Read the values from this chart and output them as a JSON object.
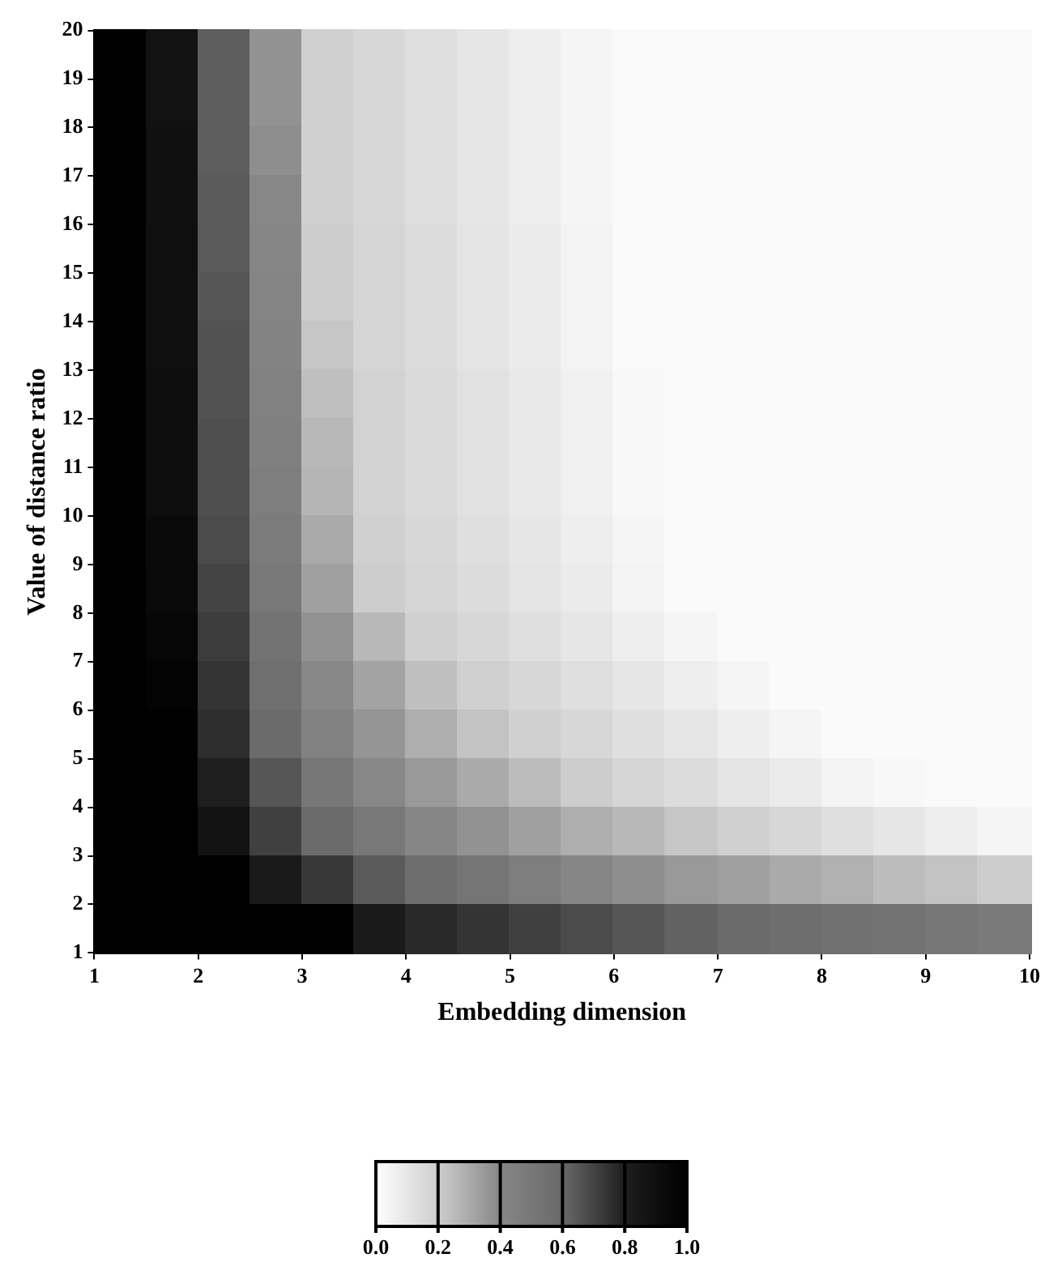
{
  "chart_data": {
    "type": "heatmap",
    "xlabel": "Embedding dimension",
    "ylabel": "Value of distance ratio",
    "x": [
      1.25,
      1.75,
      2.25,
      2.75,
      3.25,
      3.75,
      4.25,
      4.75,
      5.25,
      5.75,
      6.25,
      6.75,
      7.25,
      7.75,
      8.25,
      8.75,
      9.25,
      9.75
    ],
    "y": [
      19.5,
      18.5,
      17.5,
      16.5,
      15.5,
      14.5,
      13.5,
      12.5,
      11.5,
      10.5,
      9.5,
      8.5,
      7.5,
      6.5,
      5.5,
      4.5,
      3.5,
      2.5,
      1.5
    ],
    "xlim": [
      1,
      10
    ],
    "xticks": [
      1,
      2,
      3,
      4,
      5,
      6,
      7,
      8,
      9,
      10
    ],
    "ylim": [
      1,
      20
    ],
    "yticks": [
      1,
      2,
      3,
      4,
      5,
      6,
      7,
      8,
      9,
      10,
      11,
      12,
      13,
      14,
      15,
      16,
      17,
      18,
      19,
      20
    ],
    "clim": [
      0,
      1
    ],
    "cticks": [
      {
        "value": 0,
        "label": "0.0"
      },
      {
        "value": 0.2,
        "label": "0.2"
      },
      {
        "value": 0.4,
        "label": "0.4"
      },
      {
        "value": 0.6,
        "label": "0.6"
      },
      {
        "value": 0.8,
        "label": "0.8"
      },
      {
        "value": 1,
        "label": "1.0"
      }
    ],
    "cells": [
      [
        1,
        0.88,
        0.63,
        0.37,
        0.19,
        0.16,
        0.13,
        0.1,
        0.07,
        0.04,
        0.02,
        0.02,
        0.02,
        0.02,
        0.02,
        0.02,
        0.02,
        0.02
      ],
      [
        1,
        0.88,
        0.63,
        0.37,
        0.19,
        0.16,
        0.13,
        0.1,
        0.07,
        0.04,
        0.02,
        0.02,
        0.02,
        0.02,
        0.02,
        0.02,
        0.02,
        0.02
      ],
      [
        1,
        0.89,
        0.63,
        0.38,
        0.19,
        0.16,
        0.13,
        0.1,
        0.07,
        0.04,
        0.02,
        0.02,
        0.02,
        0.02,
        0.02,
        0.02,
        0.02,
        0.02
      ],
      [
        1,
        0.89,
        0.64,
        0.4,
        0.19,
        0.16,
        0.13,
        0.1,
        0.07,
        0.04,
        0.02,
        0.02,
        0.02,
        0.02,
        0.02,
        0.02,
        0.02,
        0.02
      ],
      [
        1,
        0.9,
        0.64,
        0.41,
        0.2,
        0.17,
        0.14,
        0.11,
        0.08,
        0.05,
        0.02,
        0.02,
        0.02,
        0.02,
        0.02,
        0.02,
        0.02,
        0.02
      ],
      [
        1,
        0.9,
        0.65,
        0.42,
        0.2,
        0.17,
        0.14,
        0.11,
        0.08,
        0.05,
        0.02,
        0.02,
        0.02,
        0.02,
        0.02,
        0.02,
        0.02,
        0.02
      ],
      [
        1,
        0.9,
        0.66,
        0.43,
        0.22,
        0.17,
        0.14,
        0.11,
        0.08,
        0.05,
        0.02,
        0.02,
        0.02,
        0.02,
        0.02,
        0.02,
        0.02,
        0.02
      ],
      [
        1,
        0.91,
        0.66,
        0.44,
        0.24,
        0.18,
        0.15,
        0.12,
        0.09,
        0.06,
        0.03,
        0.02,
        0.02,
        0.02,
        0.02,
        0.02,
        0.02,
        0.02
      ],
      [
        1,
        0.91,
        0.67,
        0.45,
        0.26,
        0.18,
        0.15,
        0.12,
        0.09,
        0.06,
        0.03,
        0.02,
        0.02,
        0.02,
        0.02,
        0.02,
        0.02,
        0.02
      ],
      [
        1,
        0.91,
        0.67,
        0.46,
        0.27,
        0.18,
        0.15,
        0.12,
        0.09,
        0.06,
        0.03,
        0.02,
        0.02,
        0.02,
        0.02,
        0.02,
        0.02,
        0.02
      ],
      [
        1,
        0.93,
        0.68,
        0.48,
        0.3,
        0.19,
        0.16,
        0.13,
        0.1,
        0.07,
        0.04,
        0.02,
        0.02,
        0.02,
        0.02,
        0.02,
        0.02,
        0.02
      ],
      [
        1,
        0.94,
        0.7,
        0.5,
        0.33,
        0.2,
        0.17,
        0.14,
        0.11,
        0.08,
        0.05,
        0.02,
        0.02,
        0.02,
        0.02,
        0.02,
        0.02,
        0.02
      ],
      [
        1,
        0.96,
        0.72,
        0.53,
        0.37,
        0.26,
        0.19,
        0.16,
        0.13,
        0.1,
        0.07,
        0.04,
        0.02,
        0.02,
        0.02,
        0.02,
        0.02,
        0.02
      ],
      [
        1,
        0.98,
        0.74,
        0.56,
        0.4,
        0.32,
        0.24,
        0.19,
        0.16,
        0.13,
        0.1,
        0.07,
        0.04,
        0.02,
        0.02,
        0.02,
        0.02,
        0.02
      ],
      [
        1,
        1,
        0.76,
        0.59,
        0.44,
        0.36,
        0.29,
        0.23,
        0.19,
        0.16,
        0.13,
        0.1,
        0.07,
        0.04,
        0.02,
        0.02,
        0.02,
        0.02
      ],
      [
        1,
        1,
        0.8,
        0.65,
        0.51,
        0.4,
        0.35,
        0.3,
        0.25,
        0.2,
        0.17,
        0.14,
        0.11,
        0.08,
        0.05,
        0.03,
        0.02,
        0.02
      ],
      [
        1,
        1,
        0.88,
        0.71,
        0.59,
        0.5,
        0.41,
        0.37,
        0.33,
        0.29,
        0.26,
        0.22,
        0.19,
        0.16,
        0.13,
        0.1,
        0.07,
        0.04
      ],
      [
        1,
        1,
        1,
        0.83,
        0.73,
        0.64,
        0.57,
        0.52,
        0.46,
        0.41,
        0.38,
        0.35,
        0.33,
        0.3,
        0.28,
        0.25,
        0.23,
        0.2
      ],
      [
        1,
        1,
        1,
        1,
        1,
        0.83,
        0.77,
        0.74,
        0.71,
        0.68,
        0.65,
        0.62,
        0.59,
        0.57,
        0.55,
        0.53,
        0.51,
        0.49
      ]
    ]
  }
}
